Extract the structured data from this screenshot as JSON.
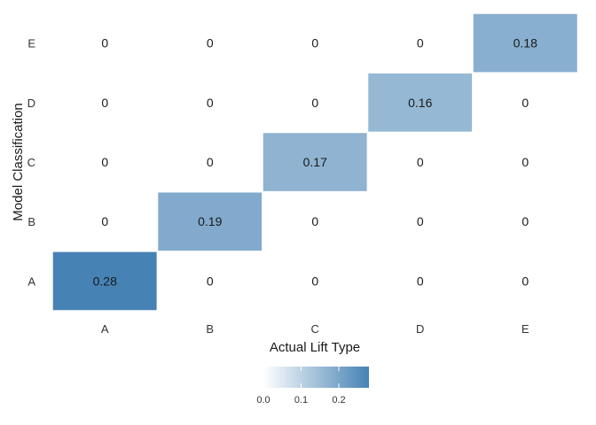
{
  "chart_data": {
    "type": "heatmap",
    "x_categories": [
      "A",
      "B",
      "C",
      "D",
      "E"
    ],
    "y_categories": [
      "A",
      "B",
      "C",
      "D",
      "E"
    ],
    "xlabel": "Actual Lift Type",
    "ylabel": "Model Classification",
    "values": [
      [
        0.28,
        0,
        0,
        0,
        0
      ],
      [
        0,
        0.19,
        0,
        0,
        0
      ],
      [
        0,
        0,
        0.17,
        0,
        0
      ],
      [
        0,
        0,
        0,
        0.16,
        0
      ],
      [
        0,
        0,
        0,
        0,
        0.18
      ]
    ],
    "value_labels": [
      [
        "0.28",
        "0",
        "0",
        "0",
        "0"
      ],
      [
        "0",
        "0.19",
        "0",
        "0",
        "0"
      ],
      [
        "0",
        "0",
        "0.17",
        "0",
        "0"
      ],
      [
        "0",
        "0",
        "0",
        "0.16",
        "0"
      ],
      [
        "0",
        "0",
        "0",
        "0",
        "0.18"
      ]
    ],
    "color_low": "#ffffff",
    "color_high": "#4682b4",
    "color_range": [
      0,
      0.28
    ],
    "legend": {
      "position": "bottom",
      "ticks": [
        0.0,
        0.1,
        0.2
      ],
      "tick_labels": [
        "0.0",
        "0.1",
        "0.2"
      ]
    },
    "grid": false
  }
}
